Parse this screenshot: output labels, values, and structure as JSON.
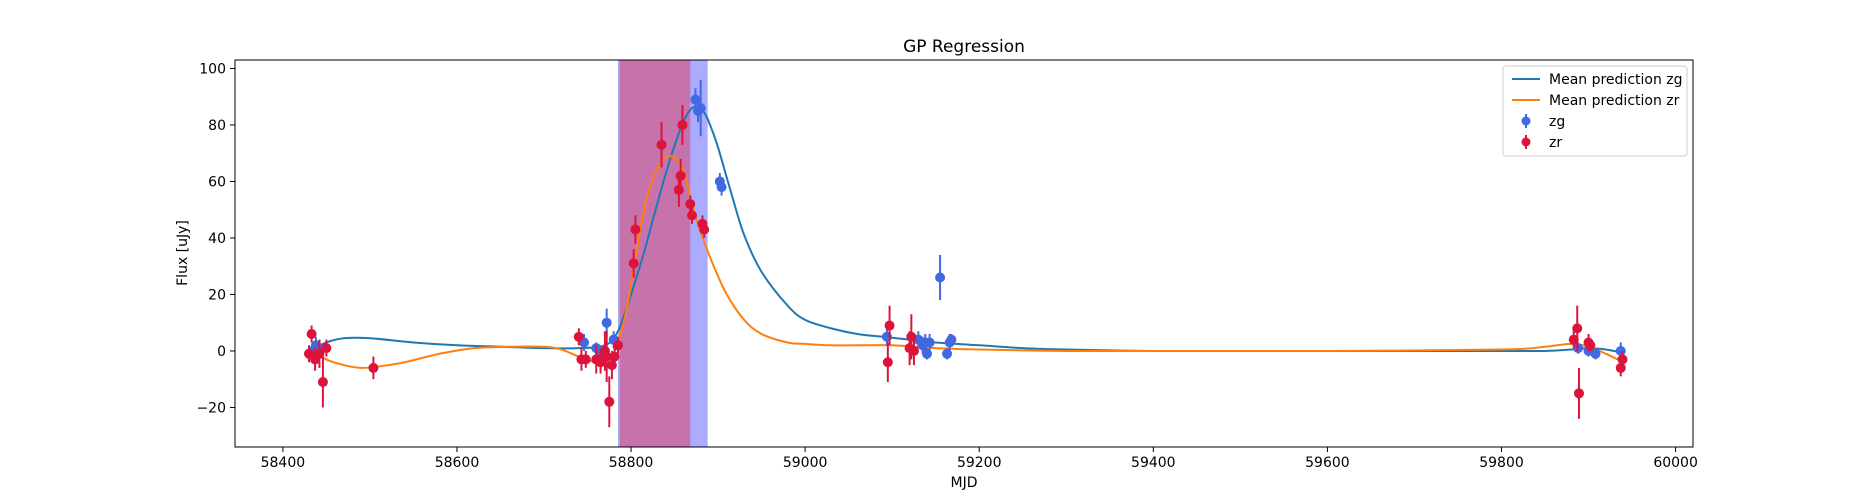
{
  "chart_data": {
    "type": "scatter",
    "title": "GP Regression",
    "xlabel": "MJD",
    "ylabel": "Flux [uJy]",
    "xlim": [
      58345,
      60020
    ],
    "ylim": [
      -34,
      103
    ],
    "xticks": [
      58400,
      58600,
      58800,
      59000,
      59200,
      59400,
      59600,
      59800,
      60000
    ],
    "yticks": [
      -20,
      0,
      20,
      40,
      60,
      80,
      100
    ],
    "grid": false,
    "legend_position": "top-right",
    "colors": {
      "zg_line": "#1f77b4",
      "zr_line": "#ff7f0e",
      "zg_points": "#4169e1",
      "zr_points": "#dc143c",
      "band_zg": "#0000ff",
      "band_zr": "#ff0000"
    },
    "shaded_regions": [
      {
        "band": "zg",
        "x_start": 58785,
        "x_end": 58888,
        "color": "#0000ff",
        "alpha": 0.33
      },
      {
        "band": "zr",
        "x_start": 58787,
        "x_end": 58868,
        "color": "#ff0000",
        "alpha": 0.33
      }
    ],
    "legend": [
      {
        "label": "Mean prediction zg",
        "kind": "line",
        "color": "#1f77b4"
      },
      {
        "label": "Mean prediction zr",
        "kind": "line",
        "color": "#ff7f0e"
      },
      {
        "label": "zg",
        "kind": "errorbar",
        "color": "#4169e1"
      },
      {
        "label": "zr",
        "kind": "errorbar",
        "color": "#dc143c"
      }
    ],
    "series": [
      {
        "name": "Mean prediction zg",
        "kind": "line",
        "color": "#1f77b4",
        "x": [
          58430,
          58450,
          58470,
          58500,
          58550,
          58600,
          58650,
          58700,
          58740,
          58770,
          58785,
          58800,
          58815,
          58830,
          58845,
          58860,
          58870,
          58878,
          58885,
          58892,
          58900,
          58915,
          58930,
          58950,
          58980,
          59000,
          59030,
          59060,
          59090,
          59120,
          59150,
          59200,
          59250,
          59300,
          59400,
          59500,
          59600,
          59700,
          59800,
          59850,
          59880,
          59900,
          59920,
          59937
        ],
        "y": [
          0,
          3,
          4.5,
          4.5,
          3,
          2,
          1.5,
          1,
          1,
          2,
          7,
          20,
          35,
          52,
          68,
          81,
          86,
          86,
          84,
          79,
          72,
          56,
          41,
          28,
          16,
          11,
          8,
          6,
          5,
          4,
          3,
          2,
          1,
          0.5,
          0,
          0,
          0,
          0,
          0,
          0,
          0.5,
          1,
          0.5,
          -0.5
        ]
      },
      {
        "name": "Mean prediction zr",
        "kind": "line",
        "color": "#ff7f0e",
        "x": [
          58430,
          58450,
          58470,
          58490,
          58510,
          58540,
          58580,
          58620,
          58660,
          58700,
          58720,
          58740,
          58760,
          58775,
          58785,
          58795,
          58805,
          58815,
          58825,
          58835,
          58845,
          58855,
          58862,
          58870,
          58880,
          58895,
          58910,
          58930,
          58950,
          58980,
          59000,
          59030,
          59060,
          59100,
          59150,
          59200,
          59300,
          59400,
          59600,
          59800,
          59850,
          59880,
          59900,
          59920,
          59937
        ],
        "y": [
          1,
          -3,
          -5,
          -6,
          -5.5,
          -4,
          -1,
          1,
          1.5,
          1.5,
          0.5,
          -2,
          -4,
          -3,
          3,
          15,
          33,
          50,
          61,
          67,
          69,
          67,
          62,
          52,
          42,
          30,
          20,
          11,
          6,
          3,
          2.5,
          2,
          2,
          2,
          1,
          0.5,
          0,
          0,
          0,
          0.5,
          1.5,
          2.5,
          1.5,
          -1,
          -3.5
        ]
      },
      {
        "name": "zg",
        "kind": "errorbar",
        "color": "#4169e1",
        "x": [
          58434,
          58438,
          58442,
          58746,
          58760,
          58765,
          58772,
          58780,
          58874,
          58877,
          58880,
          58902,
          58904,
          59094,
          59130,
          59135,
          59138,
          59140,
          59143,
          59155,
          59163,
          59166,
          59168,
          59888,
          59900,
          59908,
          59937
        ],
        "y": [
          0,
          2,
          1,
          3,
          1,
          -1,
          10,
          4,
          89,
          85,
          86,
          60,
          58,
          5,
          4,
          2,
          3,
          -1,
          3,
          26,
          -1,
          3,
          4,
          1,
          0,
          -1,
          0
        ],
        "err": [
          2,
          3,
          3,
          3,
          2,
          3,
          5,
          3,
          4,
          4,
          10,
          3,
          3,
          3,
          3,
          3,
          3,
          2,
          3,
          8,
          2,
          3,
          2,
          2,
          2,
          2,
          3
        ]
      },
      {
        "name": "zr",
        "kind": "errorbar",
        "color": "#dc143c",
        "x": [
          58430,
          58433,
          58437,
          58442,
          58446,
          58450,
          58504,
          58740,
          58743,
          58748,
          58760,
          58765,
          58770,
          58772,
          58775,
          58778,
          58781,
          58785,
          58803,
          58805,
          58835,
          58855,
          58857,
          58859,
          58868,
          58870,
          58882,
          58884,
          59095,
          59097,
          59120,
          59122,
          59125,
          59883,
          59887,
          59889,
          59900,
          59902,
          59937,
          59939
        ],
        "y": [
          -1,
          6,
          -3,
          -1,
          -11,
          1,
          -6,
          5,
          -3,
          -3,
          -3,
          -4,
          0,
          -2,
          -18,
          -5,
          -2,
          2,
          31,
          43,
          73,
          57,
          62,
          80,
          52,
          48,
          45,
          43,
          -4,
          9,
          1,
          5,
          0,
          4,
          8,
          -15,
          3,
          2,
          -6,
          -3
        ],
        "err": [
          3,
          3,
          4,
          5,
          9,
          3,
          4,
          3,
          4,
          3,
          5,
          4,
          7,
          9,
          9,
          5,
          4,
          3,
          5,
          5,
          8,
          6,
          6,
          7,
          3,
          3,
          3,
          3,
          7,
          7,
          6,
          8,
          5,
          3,
          8,
          9,
          3,
          2,
          3,
          3
        ]
      }
    ]
  }
}
